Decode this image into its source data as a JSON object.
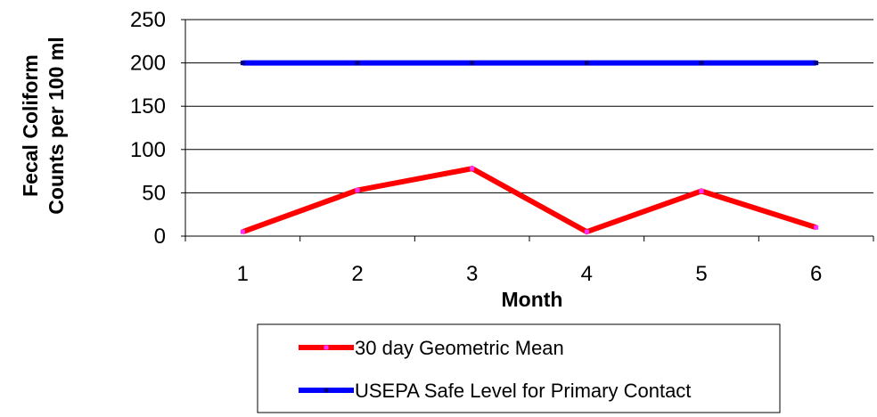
{
  "chart_data": {
    "type": "line",
    "title": "",
    "xlabel": "Month",
    "ylabel_lines": [
      "Fecal Coliform",
      "Counts per 100 ml"
    ],
    "categories": [
      "1",
      "2",
      "3",
      "4",
      "5",
      "6"
    ],
    "ylim": [
      0,
      250
    ],
    "yticks": [
      0,
      50,
      100,
      150,
      200,
      250
    ],
    "grid": "horizontal",
    "legend_placement": "bottom",
    "series": [
      {
        "name": "30 day Geometric Mean",
        "values": [
          5,
          53,
          78,
          5,
          52,
          10
        ],
        "color": "#ff0000",
        "marker_color": "#ff33ff"
      },
      {
        "name": "USEPA Safe Level for Primary Contact",
        "values": [
          200,
          200,
          200,
          200,
          200,
          200
        ],
        "color": "#0000ff",
        "marker_color": "#000080"
      }
    ]
  }
}
